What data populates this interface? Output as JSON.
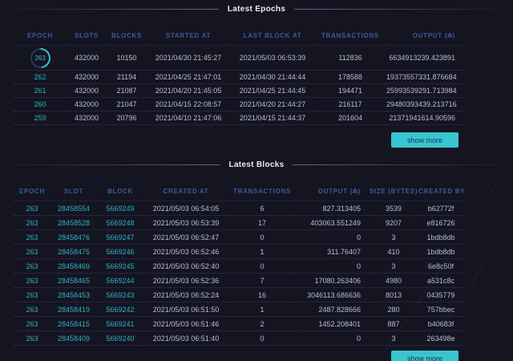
{
  "theme": {
    "background": "#151421",
    "accent_teal": "#38c5d0",
    "header_blue": "#3d5b9b",
    "text": "#b7bfd4"
  },
  "epochs_section": {
    "title": "Latest Epochs",
    "columns": [
      "EPOCH",
      "SLOTS",
      "BLOCKS",
      "STARTED AT",
      "LAST BLOCK AT",
      "TRANSACTIONS",
      "OUTPUT (₳)"
    ],
    "rows": [
      {
        "epoch": "263",
        "slots": "432000",
        "blocks": "10150",
        "started_at": "2021/04/30 21:45:27",
        "last_block_at": "2021/05/03 06:53:39",
        "transactions": "112836",
        "output": "6634913239.423891",
        "current": true,
        "progress_percent": 48
      },
      {
        "epoch": "262",
        "slots": "432000",
        "blocks": "21194",
        "started_at": "2021/04/25 21:47:01",
        "last_block_at": "2021/04/30 21:44:44",
        "transactions": "178588",
        "output": "19373557331.876684"
      },
      {
        "epoch": "261",
        "slots": "432000",
        "blocks": "21087",
        "started_at": "2021/04/20 21:45:05",
        "last_block_at": "2021/04/25 21:44:45",
        "transactions": "194471",
        "output": "25993539291.713984"
      },
      {
        "epoch": "260",
        "slots": "432000",
        "blocks": "21047",
        "started_at": "2021/04/15 22:08:57",
        "last_block_at": "2021/04/20 21:44:27",
        "transactions": "216117",
        "output": "29480393439.213716"
      },
      {
        "epoch": "259",
        "slots": "432000",
        "blocks": "20796",
        "started_at": "2021/04/10 21:47:06",
        "last_block_at": "2021/04/15 21:44:37",
        "transactions": "201604",
        "output": "21371941614.90596"
      }
    ],
    "show_more_label": "show more"
  },
  "blocks_section": {
    "title": "Latest Blocks",
    "columns": [
      "EPOCH",
      "SLOT",
      "BLOCK",
      "CREATED AT",
      "TRANSACTIONS",
      "OUTPUT (₳)",
      "SIZE (BYTES)",
      "CREATED BY"
    ],
    "rows": [
      {
        "epoch": "263",
        "slot": "28458554",
        "block": "5669249",
        "created_at": "2021/05/03 06:54:05",
        "transactions": "6",
        "output": "827.313405",
        "size": "3539",
        "created_by": "b62772f"
      },
      {
        "epoch": "263",
        "slot": "28458528",
        "block": "5669248",
        "created_at": "2021/05/03 06:53:39",
        "transactions": "17",
        "output": "403063.551249",
        "size": "9207",
        "created_by": "e816726"
      },
      {
        "epoch": "263",
        "slot": "28458476",
        "block": "5669247",
        "created_at": "2021/05/03 06:52:47",
        "transactions": "0",
        "output": "0",
        "size": "3",
        "created_by": "1bdb8db"
      },
      {
        "epoch": "263",
        "slot": "28458475",
        "block": "5669246",
        "created_at": "2021/05/03 06:52:46",
        "transactions": "1",
        "output": "311.76407",
        "size": "410",
        "created_by": "1bdb8db"
      },
      {
        "epoch": "263",
        "slot": "28458469",
        "block": "5669245",
        "created_at": "2021/05/03 06:52:40",
        "transactions": "0",
        "output": "0",
        "size": "3",
        "created_by": "6e8c50f"
      },
      {
        "epoch": "263",
        "slot": "28458465",
        "block": "5669244",
        "created_at": "2021/05/03 06:52:36",
        "transactions": "7",
        "output": "17080.263406",
        "size": "4980",
        "created_by": "a531c8c"
      },
      {
        "epoch": "263",
        "slot": "28458453",
        "block": "5669243",
        "created_at": "2021/05/03 06:52:24",
        "transactions": "16",
        "output": "3046113.686636",
        "size": "8013",
        "created_by": "0435779"
      },
      {
        "epoch": "263",
        "slot": "28458419",
        "block": "5669242",
        "created_at": "2021/05/03 06:51:50",
        "transactions": "1",
        "output": "2487.828666",
        "size": "280",
        "created_by": "757bbec"
      },
      {
        "epoch": "263",
        "slot": "28458415",
        "block": "5669241",
        "created_at": "2021/05/03 06:51:46",
        "transactions": "2",
        "output": "1452.208401",
        "size": "887",
        "created_by": "b40683f"
      },
      {
        "epoch": "263",
        "slot": "28458409",
        "block": "5669240",
        "created_at": "2021/05/03 06:51:40",
        "transactions": "0",
        "output": "0",
        "size": "3",
        "created_by": "263498e"
      }
    ],
    "show_more_label": "show more"
  }
}
